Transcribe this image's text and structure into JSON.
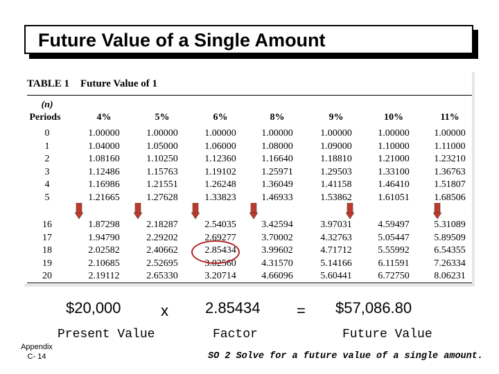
{
  "slide": {
    "title": "Future Value of a Single Amount"
  },
  "table": {
    "label": "TABLE 1",
    "caption": "Future Value of 1",
    "n_label": "(n)",
    "periods_label": "Periods",
    "rates": [
      "4%",
      "5%",
      "6%",
      "8%",
      "9%",
      "10%",
      "11%"
    ],
    "rows_top": [
      {
        "period": "0",
        "values": [
          "1.00000",
          "1.00000",
          "1.00000",
          "1.00000",
          "1.00000",
          "1.00000",
          "1.00000"
        ]
      },
      {
        "period": "1",
        "values": [
          "1.04000",
          "1.05000",
          "1.06000",
          "1.08000",
          "1.09000",
          "1.10000",
          "1.11000"
        ]
      },
      {
        "period": "2",
        "values": [
          "1.08160",
          "1.10250",
          "1.12360",
          "1.16640",
          "1.18810",
          "1.21000",
          "1.23210"
        ]
      },
      {
        "period": "3",
        "values": [
          "1.12486",
          "1.15763",
          "1.19102",
          "1.25971",
          "1.29503",
          "1.33100",
          "1.36763"
        ]
      },
      {
        "period": "4",
        "values": [
          "1.16986",
          "1.21551",
          "1.26248",
          "1.36049",
          "1.41158",
          "1.46410",
          "1.51807"
        ]
      },
      {
        "period": "5",
        "values": [
          "1.21665",
          "1.27628",
          "1.33823",
          "1.46933",
          "1.53862",
          "1.61051",
          "1.68506"
        ]
      }
    ],
    "rows_bottom": [
      {
        "period": "16",
        "values": [
          "1.87298",
          "2.18287",
          "2.54035",
          "3.42594",
          "3.97031",
          "4.59497",
          "5.31089"
        ]
      },
      {
        "period": "17",
        "values": [
          "1.94790",
          "2.29202",
          "2.69277",
          "3.70002",
          "4.32763",
          "5.05447",
          "5.89509"
        ]
      },
      {
        "period": "18",
        "values": [
          "2.02582",
          "2.40662",
          "2.85434",
          "3.99602",
          "4.71712",
          "5.55992",
          "6.54355"
        ]
      },
      {
        "period": "19",
        "values": [
          "2.10685",
          "2.52695",
          "3.02560",
          "4.31570",
          "5.14166",
          "6.11591",
          "7.26334"
        ]
      },
      {
        "period": "20",
        "values": [
          "2.19112",
          "2.65330",
          "3.20714",
          "4.66096",
          "5.60441",
          "6.72750",
          "8.06231"
        ]
      }
    ],
    "highlighted": {
      "period": "18",
      "rate": "6%"
    }
  },
  "calculation": {
    "present_value": "$20,000",
    "times": "x",
    "factor": "2.85434",
    "equals": "=",
    "future_value": "$57,086.80",
    "present_value_label": "Present Value",
    "factor_label": "Factor",
    "future_value_label": "Future Value"
  },
  "footer": {
    "appendix_line1": "Appendix",
    "appendix_line2": "C- 14",
    "study_objective": "SO 2  Solve for a future value of a single amount."
  },
  "colors": {
    "arrow": "#c0392b",
    "highlight_ring": "#b22222",
    "title_shadow": "#000000"
  }
}
